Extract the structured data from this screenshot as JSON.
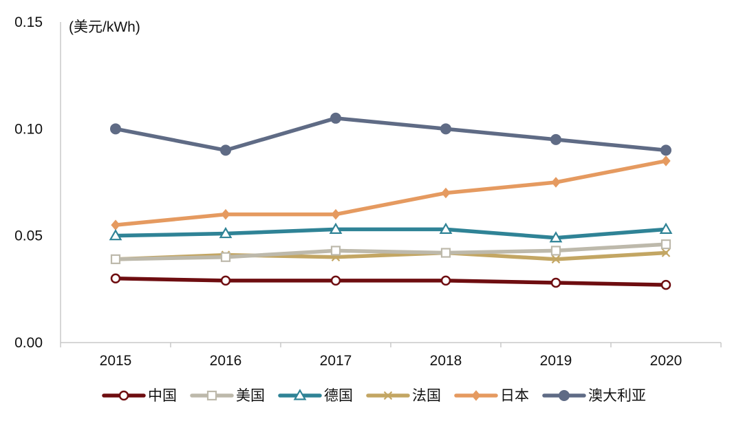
{
  "chart_data": {
    "type": "line",
    "unit_label": "(美元/kWh)",
    "categories": [
      "2015",
      "2016",
      "2017",
      "2018",
      "2019",
      "2020"
    ],
    "ylim": [
      0,
      0.15
    ],
    "yticks": [
      "0.00",
      "0.05",
      "0.10",
      "0.15"
    ],
    "grid": false,
    "legend_position": "bottom",
    "series": [
      {
        "name": "中国",
        "values": [
          0.03,
          0.029,
          0.029,
          0.029,
          0.028,
          0.027
        ],
        "color": "#6e0d10",
        "marker": "circle-open"
      },
      {
        "name": "美国",
        "values": [
          0.039,
          0.04,
          0.043,
          0.042,
          0.043,
          0.046
        ],
        "color": "#bdb9ab",
        "marker": "square-open"
      },
      {
        "name": "德国",
        "values": [
          0.05,
          0.051,
          0.053,
          0.053,
          0.049,
          0.053
        ],
        "color": "#2f8396",
        "marker": "triangle-open"
      },
      {
        "name": "法国",
        "values": [
          0.039,
          0.041,
          0.04,
          0.042,
          0.039,
          0.042
        ],
        "color": "#c3a663",
        "marker": "x"
      },
      {
        "name": "日本",
        "values": [
          0.055,
          0.06,
          0.06,
          0.07,
          0.075,
          0.085
        ],
        "color": "#e59a60",
        "marker": "diamond"
      },
      {
        "name": "澳大利亚",
        "values": [
          0.1,
          0.09,
          0.105,
          0.1,
          0.095,
          0.09
        ],
        "color": "#5f6b85",
        "marker": "circle-filled"
      }
    ]
  }
}
